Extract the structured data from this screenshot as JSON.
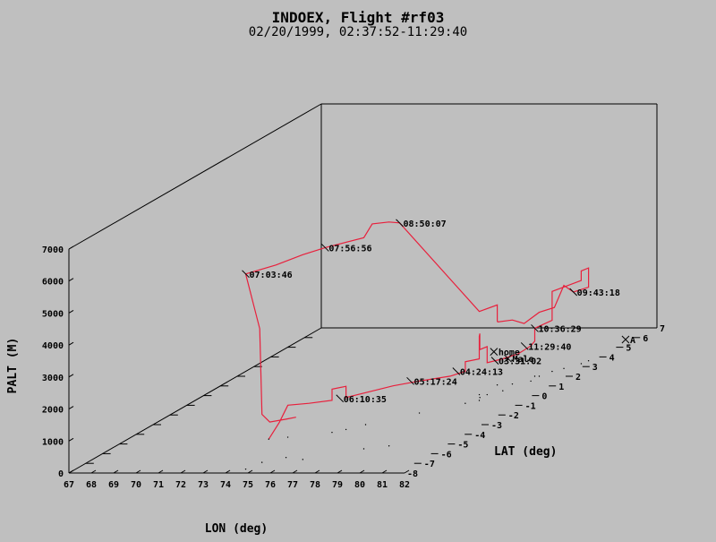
{
  "header": {
    "title": "INDOEX, Flight #rf03",
    "subtitle": "02/20/1999, 02:37:52-11:29:40"
  },
  "chart_data": {
    "type": "line",
    "projection": "3d",
    "xlabel": "LON (deg)",
    "ylabel": "LAT (deg)",
    "zlabel": "PALT (M)",
    "xlim": [
      67,
      82
    ],
    "ylim": [
      -8,
      7
    ],
    "zlim": [
      0,
      7000
    ],
    "x_ticks": [
      67,
      68,
      69,
      70,
      71,
      72,
      73,
      74,
      75,
      76,
      77,
      78,
      79,
      80,
      81,
      82
    ],
    "y_ticks": [
      -8,
      -7,
      -6,
      -5,
      -4,
      -3,
      -2,
      -1,
      0,
      1,
      2,
      3,
      4,
      5,
      6,
      7
    ],
    "z_ticks": [
      0,
      1000,
      2000,
      3000,
      4000,
      5000,
      6000,
      7000
    ],
    "track_color": "#e8203c",
    "series": [
      {
        "points": [
          {
            "lon": 73.3,
            "lat": -4.5,
            "alt": 0
          },
          {
            "lon": 73.7,
            "lat": -4.4,
            "alt": 500
          },
          {
            "lon": 74.0,
            "lat": -4.3,
            "alt": 1000
          },
          {
            "lon": 74.8,
            "lat": -4.1,
            "alt": 1000
          },
          {
            "lon": 75.6,
            "lat": -3.8,
            "alt": 1000
          },
          {
            "lon": 75.6,
            "lat": -3.8,
            "alt": 1350
          },
          {
            "lon": 76.0,
            "lat": -3.5,
            "alt": 1350
          },
          {
            "lon": 76.0,
            "lat": -3.5,
            "alt": 1000
          },
          {
            "lon": 76.5,
            "lat": -3.0,
            "alt": 1000
          },
          {
            "lon": 77.2,
            "lat": -2.3,
            "alt": 1000
          },
          {
            "lon": 78.0,
            "lat": -1.8,
            "alt": 1000
          },
          {
            "lon": 79.0,
            "lat": -1.3,
            "alt": 1000
          },
          {
            "lon": 79.3,
            "lat": -0.8,
            "alt": 1000
          },
          {
            "lon": 79.3,
            "lat": -0.8,
            "alt": 1300
          },
          {
            "lon": 79.7,
            "lat": -0.5,
            "alt": 1300
          },
          {
            "lon": 79.7,
            "lat": -0.5,
            "alt": 2000
          },
          {
            "lon": 79.5,
            "lat": -0.2,
            "alt": 2000
          },
          {
            "lon": 79.5,
            "lat": -0.2,
            "alt": 1500
          },
          {
            "lon": 79.6,
            "lat": 0.1,
            "alt": 1500
          },
          {
            "lon": 79.6,
            "lat": 0.1,
            "alt": 1000
          },
          {
            "lon": 80.0,
            "lat": 0.5,
            "alt": 1000
          },
          {
            "lon": 80.3,
            "lat": 1.0,
            "alt": 1000
          },
          {
            "lon": 80.5,
            "lat": 1.5,
            "alt": 1100
          },
          {
            "lon": 80.3,
            "lat": 2.0,
            "alt": 1100
          },
          {
            "lon": 80.3,
            "lat": 2.0,
            "alt": 1500
          },
          {
            "lon": 80.7,
            "lat": 2.5,
            "alt": 1600
          },
          {
            "lon": 80.7,
            "lat": 2.5,
            "alt": 2500
          },
          {
            "lon": 81.4,
            "lat": 3.3,
            "alt": 2600
          },
          {
            "lon": 81.4,
            "lat": 3.3,
            "alt": 2900
          },
          {
            "lon": 81.5,
            "lat": 3.6,
            "alt": 2900
          },
          {
            "lon": 81.5,
            "lat": 3.6,
            "alt": 2300
          },
          {
            "lon": 81.2,
            "lat": 3.1,
            "alt": 2300
          },
          {
            "lon": 81.0,
            "lat": 2.8,
            "alt": 2600
          },
          {
            "lon": 80.8,
            "lat": 2.5,
            "alt": 2000
          },
          {
            "lon": 80.5,
            "lat": 2.0,
            "alt": 2000
          },
          {
            "lon": 80.2,
            "lat": 1.5,
            "alt": 1800
          },
          {
            "lon": 79.9,
            "lat": 1.2,
            "alt": 2000
          },
          {
            "lon": 79.4,
            "lat": 1.0,
            "alt": 2000
          },
          {
            "lon": 79.3,
            "lat": 1.1,
            "alt": 2000
          },
          {
            "lon": 79.3,
            "lat": 1.1,
            "alt": 2500
          },
          {
            "lon": 79.25,
            "lat": 0.1,
            "alt": 2600
          },
          {
            "lon": 79.75,
            "lat": -5.3,
            "alt": 7000
          },
          {
            "lon": 79.2,
            "lat": -5.2,
            "alt": 7000
          },
          {
            "lon": 78.6,
            "lat": -5.4,
            "alt": 7000
          },
          {
            "lon": 78.3,
            "lat": -5.5,
            "alt": 6600
          },
          {
            "lon": 77.1,
            "lat": -6.2,
            "alt": 6500
          },
          {
            "lon": 76.4,
            "lat": -6.6,
            "alt": 6400
          },
          {
            "lon": 75.5,
            "lat": -7.0,
            "alt": 6200
          },
          {
            "lon": 74.6,
            "lat": -7.6,
            "alt": 6100
          },
          {
            "lon": 75.0,
            "lat": -7.3,
            "alt": 4300
          },
          {
            "lon": 74.8,
            "lat": -6.9,
            "alt": 1500
          },
          {
            "lon": 75.0,
            "lat": -6.7,
            "alt": 1200
          },
          {
            "lon": 75.5,
            "lat": -6.4,
            "alt": 1200
          },
          {
            "lon": 75.8,
            "lat": -6.2,
            "alt": 1200
          }
        ]
      }
    ],
    "annotations": [
      {
        "text": "08:50:07",
        "lon": 79.75,
        "lat": -5.3,
        "alt": 7000
      },
      {
        "text": "07:56:56",
        "lon": 77.1,
        "lat": -6.2,
        "alt": 6500
      },
      {
        "text": "07:03:46",
        "lon": 74.6,
        "lat": -7.6,
        "alt": 6100
      },
      {
        "text": "09:43:18",
        "lon": 81.2,
        "lat": 3.1,
        "alt": 2300
      },
      {
        "text": "10:36:29",
        "lon": 80.3,
        "lat": 2.0,
        "alt": 1500
      },
      {
        "text": "11:29:40",
        "lon": 80.0,
        "lat": 1.8,
        "alt": 1000
      },
      {
        "text": "03:31:02",
        "lon": 79.8,
        "lat": 0.3,
        "alt": 1000
      },
      {
        "text": "04:24:13",
        "lon": 78.9,
        "lat": -0.8,
        "alt": 1000
      },
      {
        "text": "05:17:24",
        "lon": 77.6,
        "lat": -1.8,
        "alt": 1000
      },
      {
        "text": "06:10:35",
        "lon": 75.8,
        "lat": -3.6,
        "alt": 1000
      }
    ],
    "markers": [
      {
        "label": "home",
        "lon": 79.3,
        "lat": 0.9,
        "alt": 1100
      },
      {
        "label": "Male",
        "lon": 79.7,
        "lat": 1.2,
        "alt": 800
      },
      {
        "label": "A",
        "lon": 81.5,
        "lat": 5.8,
        "alt": 0
      }
    ]
  }
}
